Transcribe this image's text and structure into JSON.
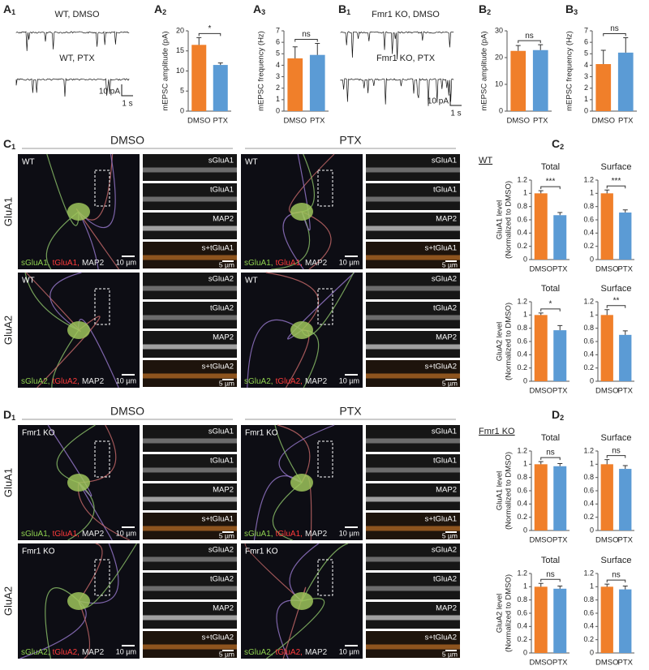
{
  "panel_labels": [
    {
      "letter": "A",
      "sub": "1"
    },
    {
      "letter": "A",
      "sub": "2"
    },
    {
      "letter": "A",
      "sub": "3"
    },
    {
      "letter": "B",
      "sub": "1"
    },
    {
      "letter": "B",
      "sub": "2"
    },
    {
      "letter": "B",
      "sub": "3"
    },
    {
      "letter": "C",
      "sub": "1"
    },
    {
      "letter": "C",
      "sub": "2"
    },
    {
      "letter": "D",
      "sub": "1"
    },
    {
      "letter": "D",
      "sub": "2"
    }
  ],
  "traces": [
    "WT, DMSO",
    "WT, PTX",
    "Fmr1 KO, DMSO",
    "Fmr1 KO, PTX"
  ],
  "trace_scale": {
    "y": "10 pA",
    "x": "1 s"
  },
  "imaging": {
    "conditions": [
      "DMSO",
      "PTX"
    ],
    "rows": [
      "GluA1",
      "GluA2"
    ],
    "genotypes": [
      "WT",
      "Fmr1 KO"
    ],
    "merge_labels": [
      [
        "sGluA1,",
        "tGluA1,",
        "MAP2"
      ],
      [
        "sGluA2,",
        "tGluA2,",
        "MAP2"
      ]
    ],
    "strips": [
      [
        "sGluA1",
        "tGluA1",
        "MAP2",
        "s+tGluA1"
      ],
      [
        "sGluA2",
        "tGluA2",
        "MAP2",
        "s+tGluA2"
      ]
    ],
    "scale_large": "10 µm",
    "scale_small": "5 µm"
  },
  "chart_data": [
    {
      "type": "bar",
      "ylabel": "mEPSC amplitude (pA)",
      "categories": [
        "DMSO",
        "PTX"
      ],
      "values": [
        16.5,
        11.5
      ],
      "errors": [
        1.8,
        0.5
      ],
      "colors": [
        "#f07f2a",
        "#5b9bd5"
      ],
      "ylim": [
        0,
        20
      ],
      "yticks": [
        0,
        5,
        10,
        15,
        20
      ],
      "annotation": "*"
    },
    {
      "type": "bar",
      "ylabel": "mEPSC frequency (Hz)",
      "categories": [
        "DMSO",
        "PTX"
      ],
      "values": [
        4.6,
        4.9
      ],
      "errors": [
        1.0,
        1.0
      ],
      "colors": [
        "#f07f2a",
        "#5b9bd5"
      ],
      "ylim": [
        0,
        7
      ],
      "yticks": [
        0,
        1,
        2,
        3,
        4,
        5,
        6,
        7
      ],
      "annotation": "ns"
    },
    {
      "type": "bar",
      "ylabel": "mEPSC amplitude (pA)",
      "categories": [
        "DMSO",
        "PTX"
      ],
      "values": [
        22.5,
        22.8
      ],
      "errors": [
        2.0,
        2.0
      ],
      "colors": [
        "#f07f2a",
        "#5b9bd5"
      ],
      "ylim": [
        0,
        30
      ],
      "yticks": [
        0,
        10,
        20,
        30
      ],
      "annotation": "ns"
    },
    {
      "type": "bar",
      "ylabel": "mEPSC frequency (Hz)",
      "categories": [
        "DMSO",
        "PTX"
      ],
      "values": [
        4.1,
        5.1
      ],
      "errors": [
        1.2,
        1.3
      ],
      "colors": [
        "#f07f2a",
        "#5b9bd5"
      ],
      "ylim": [
        0,
        7
      ],
      "yticks": [
        0,
        1,
        2,
        3,
        4,
        5,
        6,
        7
      ],
      "annotation": "ns"
    },
    {
      "type": "bar",
      "title": "Total",
      "ylabel": [
        "GluA1 level",
        "(Normalized to DMSO)"
      ],
      "categories": [
        "DMSO",
        "PTX"
      ],
      "values": [
        1,
        0.67
      ],
      "errors": [
        0.04,
        0.04
      ],
      "colors": [
        "#f07f2a",
        "#5b9bd5"
      ],
      "ylim": [
        0,
        1.2
      ],
      "yticks": [
        0,
        0.2,
        0.4,
        0.6,
        0.8,
        1,
        1.2
      ],
      "annotation": "***"
    },
    {
      "type": "bar",
      "title": "Surface",
      "categories": [
        "DMSO",
        "PTX"
      ],
      "values": [
        1,
        0.71
      ],
      "errors": [
        0.05,
        0.04
      ],
      "colors": [
        "#f07f2a",
        "#5b9bd5"
      ],
      "ylim": [
        0,
        1.2
      ],
      "yticks": [
        0,
        0.2,
        0.4,
        0.6,
        0.8,
        1,
        1.2
      ],
      "annotation": "***"
    },
    {
      "type": "bar",
      "title": "Total",
      "ylabel": [
        "GluA2 level",
        "(Normalized to DMSO)"
      ],
      "categories": [
        "DMSO",
        "PTX"
      ],
      "values": [
        1,
        0.77
      ],
      "errors": [
        0.03,
        0.07
      ],
      "colors": [
        "#f07f2a",
        "#5b9bd5"
      ],
      "ylim": [
        0,
        1.2
      ],
      "yticks": [
        0,
        0.2,
        0.4,
        0.6,
        0.8,
        1,
        1.2
      ],
      "annotation": "*"
    },
    {
      "type": "bar",
      "title": "Surface",
      "categories": [
        "DMSO",
        "PTX"
      ],
      "values": [
        1,
        0.7
      ],
      "errors": [
        0.08,
        0.06
      ],
      "colors": [
        "#f07f2a",
        "#5b9bd5"
      ],
      "ylim": [
        0,
        1.2
      ],
      "yticks": [
        0,
        0.2,
        0.4,
        0.6,
        0.8,
        1,
        1.2
      ],
      "annotation": "**"
    },
    {
      "type": "bar",
      "title": "Total",
      "ylabel": [
        "GluA1 level",
        "(Normalized to DMSO)"
      ],
      "categories": [
        "DMSO",
        "PTX"
      ],
      "values": [
        1,
        0.97
      ],
      "errors": [
        0.04,
        0.04
      ],
      "colors": [
        "#f07f2a",
        "#5b9bd5"
      ],
      "ylim": [
        0,
        1.2
      ],
      "yticks": [
        0,
        0.2,
        0.4,
        0.6,
        0.8,
        1,
        1.2
      ],
      "annotation": "ns"
    },
    {
      "type": "bar",
      "title": "Surface",
      "categories": [
        "DMSO",
        "PTX"
      ],
      "values": [
        1,
        0.93
      ],
      "errors": [
        0.07,
        0.05
      ],
      "colors": [
        "#f07f2a",
        "#5b9bd5"
      ],
      "ylim": [
        0,
        1.2
      ],
      "yticks": [
        0,
        0.2,
        0.4,
        0.6,
        0.8,
        1,
        1.2
      ],
      "annotation": "ns"
    },
    {
      "type": "bar",
      "title": "Total",
      "ylabel": [
        "GluA2 level",
        "(Normalized to DMSO)"
      ],
      "categories": [
        "DMSO",
        "PTX"
      ],
      "values": [
        1,
        0.97
      ],
      "errors": [
        0.05,
        0.04
      ],
      "colors": [
        "#f07f2a",
        "#5b9bd5"
      ],
      "ylim": [
        0,
        1.2
      ],
      "yticks": [
        0,
        0.2,
        0.4,
        0.6,
        0.8,
        1,
        1.2
      ],
      "annotation": "ns"
    },
    {
      "type": "bar",
      "title": "Surface",
      "categories": [
        "DMSO",
        "PTX"
      ],
      "values": [
        1,
        0.96
      ],
      "errors": [
        0.04,
        0.05
      ],
      "colors": [
        "#f07f2a",
        "#5b9bd5"
      ],
      "ylim": [
        0,
        1.2
      ],
      "yticks": [
        0,
        0.2,
        0.4,
        0.6,
        0.8,
        1,
        1.2
      ],
      "annotation": "ns"
    }
  ]
}
